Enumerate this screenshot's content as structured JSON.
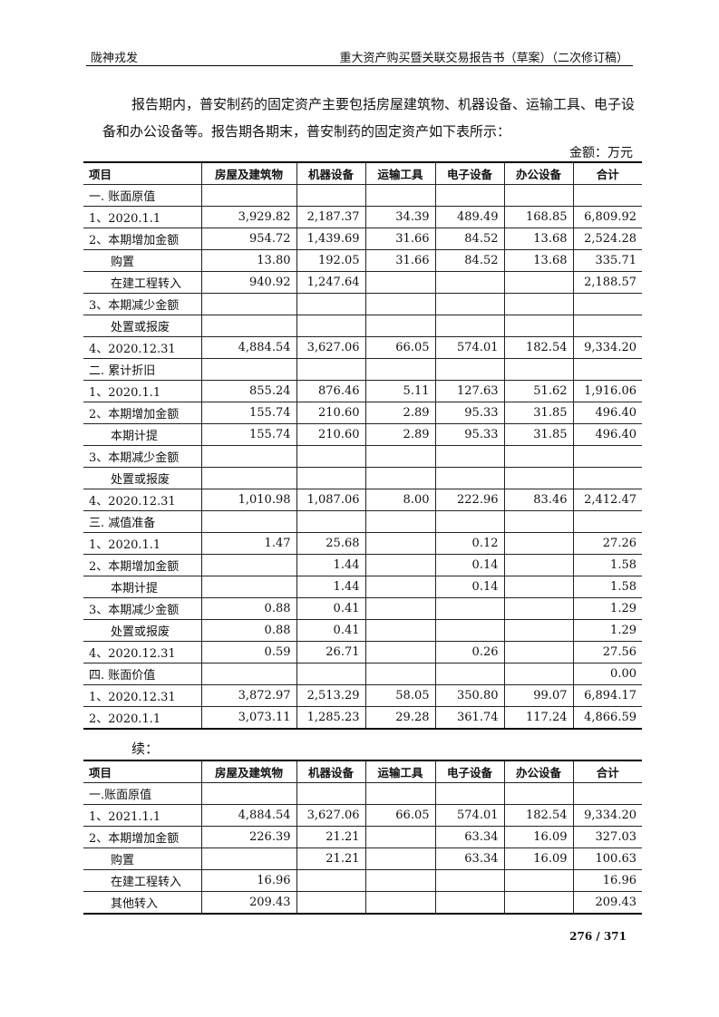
{
  "header": {
    "left": "陇神戎发",
    "right": "重大资产购买暨关联交易报告书（草案）（二次修订稿）"
  },
  "paragraph": "报告期内，普安制药的固定资产主要包括房屋建筑物、机器设备、运输工具、电子设备和办公设备等。报告期各期末，普安制药的固定资产如下表所示：",
  "unit": "金额：万元",
  "columns": [
    "项目",
    "房屋及建筑物",
    "机器设备",
    "运输工具",
    "电子设备",
    "办公设备",
    "合计"
  ],
  "table1": [
    {
      "level": 0,
      "cells": [
        "一. 账面原值",
        "",
        "",
        "",
        "",
        "",
        ""
      ]
    },
    {
      "level": 0,
      "cells": [
        "1、2020.1.1",
        "3,929.82",
        "2,187.37",
        "34.39",
        "489.49",
        "168.85",
        "6,809.92"
      ]
    },
    {
      "level": 0,
      "cells": [
        "2、本期增加金额",
        "954.72",
        "1,439.69",
        "31.66",
        "84.52",
        "13.68",
        "2,524.28"
      ]
    },
    {
      "level": 1,
      "cells": [
        "购置",
        "13.80",
        "192.05",
        "31.66",
        "84.52",
        "13.68",
        "335.71"
      ]
    },
    {
      "level": 1,
      "cells": [
        "在建工程转入",
        "940.92",
        "1,247.64",
        "",
        "",
        "",
        "2,188.57"
      ]
    },
    {
      "level": 0,
      "cells": [
        "3、本期减少金额",
        "",
        "",
        "",
        "",
        "",
        ""
      ]
    },
    {
      "level": 1,
      "cells": [
        "处置或报废",
        "",
        "",
        "",
        "",
        "",
        ""
      ]
    },
    {
      "level": 0,
      "cells": [
        "4、2020.12.31",
        "4,884.54",
        "3,627.06",
        "66.05",
        "574.01",
        "182.54",
        "9,334.20"
      ]
    },
    {
      "level": 0,
      "cells": [
        "二. 累计折旧",
        "",
        "",
        "",
        "",
        "",
        ""
      ]
    },
    {
      "level": 0,
      "cells": [
        "1、2020.1.1",
        "855.24",
        "876.46",
        "5.11",
        "127.63",
        "51.62",
        "1,916.06"
      ]
    },
    {
      "level": 0,
      "cells": [
        "2、本期增加金额",
        "155.74",
        "210.60",
        "2.89",
        "95.33",
        "31.85",
        "496.40"
      ]
    },
    {
      "level": 1,
      "cells": [
        "本期计提",
        "155.74",
        "210.60",
        "2.89",
        "95.33",
        "31.85",
        "496.40"
      ]
    },
    {
      "level": 0,
      "cells": [
        "3、本期减少金额",
        "",
        "",
        "",
        "",
        "",
        ""
      ]
    },
    {
      "level": 1,
      "cells": [
        "处置或报废",
        "",
        "",
        "",
        "",
        "",
        ""
      ]
    },
    {
      "level": 0,
      "cells": [
        "4、2020.12.31",
        "1,010.98",
        "1,087.06",
        "8.00",
        "222.96",
        "83.46",
        "2,412.47"
      ]
    },
    {
      "level": 0,
      "cells": [
        "三. 减值准备",
        "",
        "",
        "",
        "",
        "",
        ""
      ]
    },
    {
      "level": 0,
      "cells": [
        "1、2020.1.1",
        "1.47",
        "25.68",
        "",
        "0.12",
        "",
        "27.26"
      ]
    },
    {
      "level": 0,
      "cells": [
        "2、本期增加金额",
        "",
        "1.44",
        "",
        "0.14",
        "",
        "1.58"
      ]
    },
    {
      "level": 1,
      "cells": [
        "本期计提",
        "",
        "1.44",
        "",
        "0.14",
        "",
        "1.58"
      ]
    },
    {
      "level": 0,
      "cells": [
        "3、本期减少金额",
        "0.88",
        "0.41",
        "",
        "",
        "",
        "1.29"
      ]
    },
    {
      "level": 1,
      "cells": [
        "处置或报废",
        "0.88",
        "0.41",
        "",
        "",
        "",
        "1.29"
      ]
    },
    {
      "level": 0,
      "cells": [
        "4、2020.12.31",
        "0.59",
        "26.71",
        "",
        "0.26",
        "",
        "27.56"
      ]
    },
    {
      "level": 0,
      "cells": [
        "四. 账面价值",
        "",
        "",
        "",
        "",
        "",
        "0.00"
      ]
    },
    {
      "level": 0,
      "cells": [
        "1、2020.12.31",
        "3,872.97",
        "2,513.29",
        "58.05",
        "350.80",
        "99.07",
        "6,894.17"
      ]
    },
    {
      "level": 0,
      "cells": [
        "2、2020.1.1",
        "3,073.11",
        "1,285.23",
        "29.28",
        "361.74",
        "117.24",
        "4,866.59"
      ]
    }
  ],
  "continued_label": "续：",
  "table2": [
    {
      "level": 0,
      "cells": [
        "一.账面原值",
        "",
        "",
        "",
        "",
        "",
        ""
      ]
    },
    {
      "level": 0,
      "cells": [
        "1、2021.1.1",
        "4,884.54",
        "3,627.06",
        "66.05",
        "574.01",
        "182.54",
        "9,334.20"
      ]
    },
    {
      "level": 0,
      "cells": [
        "2、本期增加金额",
        "226.39",
        "21.21",
        "",
        "63.34",
        "16.09",
        "327.03"
      ]
    },
    {
      "level": 1,
      "cells": [
        "购置",
        "",
        "21.21",
        "",
        "63.34",
        "16.09",
        "100.63"
      ]
    },
    {
      "level": 1,
      "cells": [
        "在建工程转入",
        "16.96",
        "",
        "",
        "",
        "",
        "16.96"
      ]
    },
    {
      "level": 1,
      "cells": [
        "其他转入",
        "209.43",
        "",
        "",
        "",
        "",
        "209.43"
      ]
    }
  ],
  "page_number": "276 / 371"
}
